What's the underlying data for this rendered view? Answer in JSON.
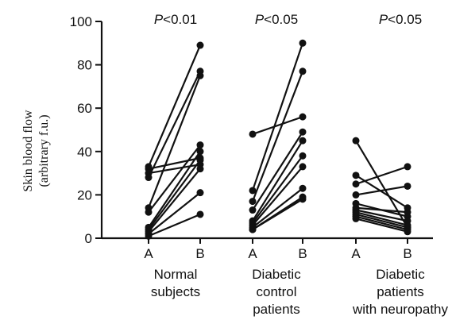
{
  "chart_data": {
    "type": "line",
    "title": "",
    "ylabel": [
      "Skin blood flow",
      "(arbitrary f.u.)"
    ],
    "ylim": [
      0,
      100
    ],
    "yticks": [
      "0",
      "20",
      "40",
      "60",
      "80",
      "100"
    ],
    "grid": false,
    "legend": "none",
    "line_color": "#111111",
    "groups": [
      {
        "label": [
          "Normal",
          "subjects"
        ],
        "pvalue": {
          "italic": "P",
          "rest": "<0.01"
        },
        "conditions": [
          "A",
          "B"
        ],
        "pairs": [
          [
            33,
            89
          ],
          [
            32,
            37
          ],
          [
            30,
            34
          ],
          [
            28,
            77
          ],
          [
            14,
            75
          ],
          [
            12,
            43
          ],
          [
            5,
            40
          ],
          [
            4,
            36
          ],
          [
            3,
            32
          ],
          [
            2,
            21
          ],
          [
            1,
            11
          ]
        ]
      },
      {
        "label": [
          "Diabetic",
          "control",
          "patients"
        ],
        "pvalue": {
          "italic": "P",
          "rest": "<0.05"
        },
        "conditions": [
          "A",
          "B"
        ],
        "pairs": [
          [
            48,
            56
          ],
          [
            22,
            90
          ],
          [
            17,
            77
          ],
          [
            13,
            49
          ],
          [
            8,
            45
          ],
          [
            7,
            38
          ],
          [
            6,
            33
          ],
          [
            5,
            23
          ],
          [
            4,
            18
          ],
          [
            4,
            19
          ]
        ]
      },
      {
        "label": [
          "Diabetic",
          "patients",
          "with neuropathy"
        ],
        "pvalue": {
          "italic": "P",
          "rest": "<0.05"
        },
        "conditions": [
          "A",
          "B"
        ],
        "pairs": [
          [
            45,
            5
          ],
          [
            29,
            14
          ],
          [
            25,
            33
          ],
          [
            20,
            24
          ],
          [
            16,
            10
          ],
          [
            14,
            12
          ],
          [
            13,
            8
          ],
          [
            12,
            6
          ],
          [
            11,
            5
          ],
          [
            10,
            4
          ],
          [
            9,
            3
          ]
        ]
      }
    ]
  }
}
